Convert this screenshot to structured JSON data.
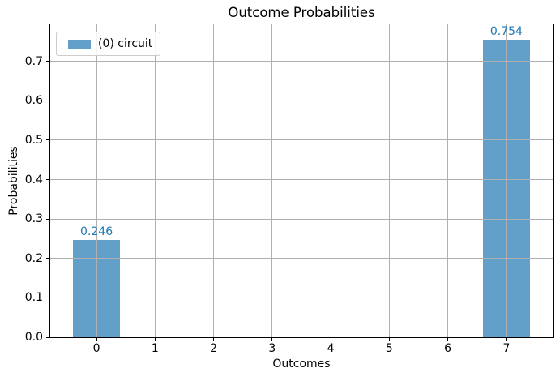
{
  "chart_data": {
    "type": "bar",
    "title": "Outcome Probabilities",
    "xlabel": "Outcomes",
    "ylabel": "Probabilities",
    "categories": [
      "0",
      "1",
      "2",
      "3",
      "4",
      "5",
      "6",
      "7"
    ],
    "series": [
      {
        "name": "(0) circuit",
        "values": [
          0.246,
          0,
          0,
          0,
          0,
          0,
          0,
          0.754
        ],
        "value_labels": [
          "0.246",
          "",
          "",
          "",
          "",
          "",
          "",
          "0.754"
        ]
      }
    ],
    "legend": {
      "position": "upper left",
      "entries": [
        {
          "label": "(0) circuit",
          "color": "#62A0CA"
        }
      ]
    },
    "xlim": [
      -0.79,
      7.79
    ],
    "ylim": [
      0,
      0.794
    ],
    "yticks": [
      0,
      0.1,
      0.2,
      0.3,
      0.4,
      0.5,
      0.6,
      0.7
    ],
    "ytick_labels": [
      "0.0",
      "0.1",
      "0.2",
      "0.3",
      "0.4",
      "0.5",
      "0.6",
      "0.7"
    ],
    "grid": true,
    "grid_above_bars": true,
    "bar_width": 0.8,
    "colors": {
      "bar": "#62A0CA",
      "grid": "#b0b0b0",
      "value_label": "#1f77b4",
      "spine": "#000000",
      "background": "#ffffff"
    }
  }
}
